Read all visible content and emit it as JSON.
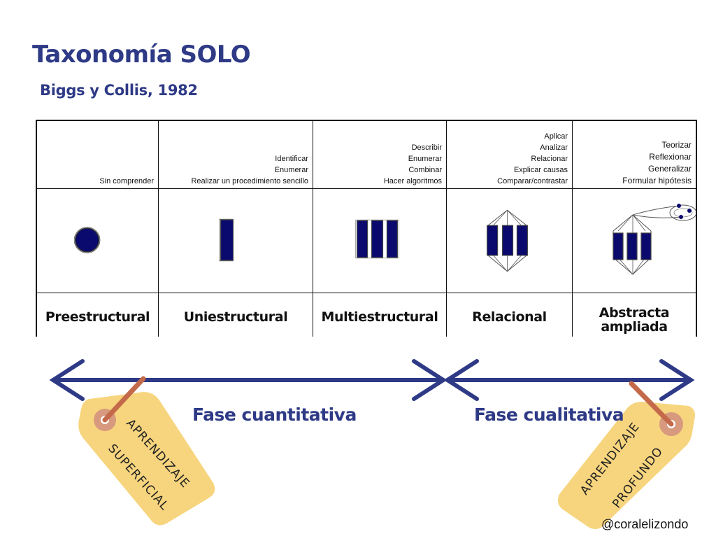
{
  "header": {
    "title": "Taxonomía SOLO",
    "subtitle": "Biggs y Collis, 1982"
  },
  "levels": [
    {
      "name": "Preestructural",
      "verbs": [
        "Sin comprender"
      ]
    },
    {
      "name": "Uniestructural",
      "verbs": [
        "Identificar",
        "Enumerar",
        "Realizar un procedimiento sencillo"
      ]
    },
    {
      "name": "Multiestructural",
      "verbs": [
        "Describir",
        "Enumerar",
        "Combinar",
        "Hacer algoritmos"
      ]
    },
    {
      "name": "Relacional",
      "verbs": [
        "Aplicar",
        "Analizar",
        "Relacionar",
        "Explicar causas",
        "Comparar/contrastar"
      ]
    },
    {
      "name": "Abstracta\nampliada",
      "verbs": [
        "Teorizar",
        "Reflexionar",
        "Generalizar",
        "Formular hipótesis"
      ]
    }
  ],
  "phases": {
    "quantitative": "Fase cuantitativa",
    "qualitative": "Fase cualitativa"
  },
  "tags": {
    "left": {
      "line1": "APRENDIZAJE",
      "line2": "SUPERFICIAL"
    },
    "right": {
      "line1": "APRENDIZAJE",
      "line2": "PROFUNDO"
    }
  },
  "credit": "@coralelizondo",
  "colors": {
    "navy": "#2e3a86",
    "block": "#0a0a6e",
    "tag": "#f7d57e",
    "tag_hole": "#d79a7e",
    "string": "#c46a4a"
  }
}
